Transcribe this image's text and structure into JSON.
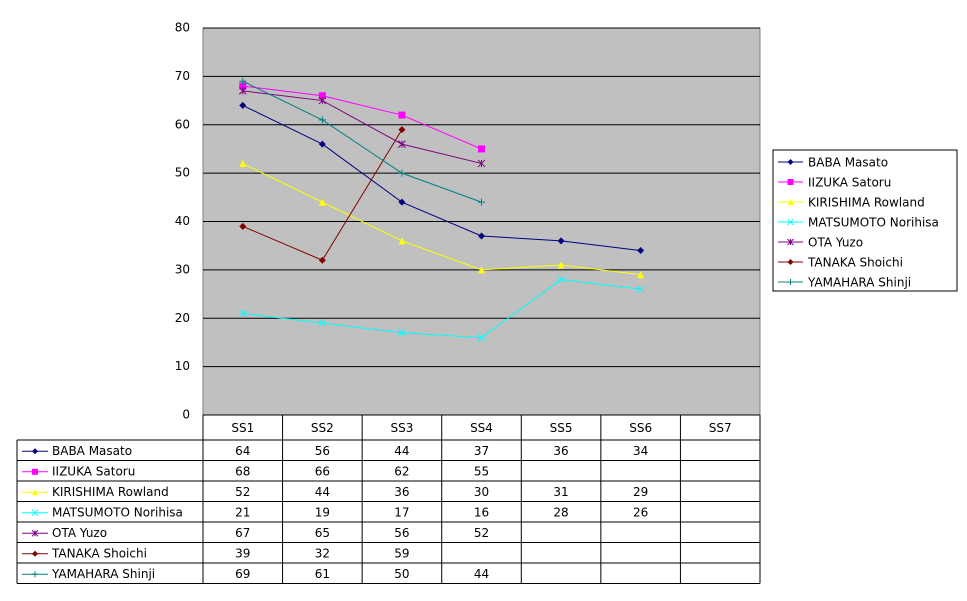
{
  "chart_data": {
    "type": "line",
    "categories": [
      "SS1",
      "SS2",
      "SS3",
      "SS4",
      "SS5",
      "SS6",
      "SS7"
    ],
    "series": [
      {
        "name": "BABA Masato",
        "color": "#000080",
        "marker": "diamond",
        "values": [
          64,
          56,
          44,
          37,
          36,
          34,
          null
        ]
      },
      {
        "name": "IIZUKA Satoru",
        "color": "#ff00ff",
        "marker": "square",
        "values": [
          68,
          66,
          62,
          55,
          null,
          null,
          null
        ]
      },
      {
        "name": "KIRISHIMA Rowland",
        "color": "#ffff00",
        "marker": "triangle",
        "values": [
          52,
          44,
          36,
          30,
          31,
          29,
          null
        ]
      },
      {
        "name": "MATSUMOTO Norihisa",
        "color": "#00ffff",
        "marker": "x",
        "values": [
          21,
          19,
          17,
          16,
          28,
          26,
          null
        ]
      },
      {
        "name": "OTA Yuzo",
        "color": "#800080",
        "marker": "star",
        "values": [
          67,
          65,
          56,
          52,
          null,
          null,
          null
        ]
      },
      {
        "name": "TANAKA Shoichi",
        "color": "#800000",
        "marker": "diamond",
        "values": [
          39,
          32,
          59,
          null,
          null,
          null,
          null
        ]
      },
      {
        "name": "YAMAHARA Shinji",
        "color": "#008080",
        "marker": "plus",
        "values": [
          69,
          61,
          50,
          44,
          null,
          null,
          null
        ]
      }
    ],
    "ylim": [
      0,
      80
    ],
    "yticks": [
      0,
      10,
      20,
      30,
      40,
      50,
      60,
      70,
      80
    ],
    "grid": true,
    "legend": "right",
    "plot_background": "#c0c0c0",
    "data_table": true
  }
}
